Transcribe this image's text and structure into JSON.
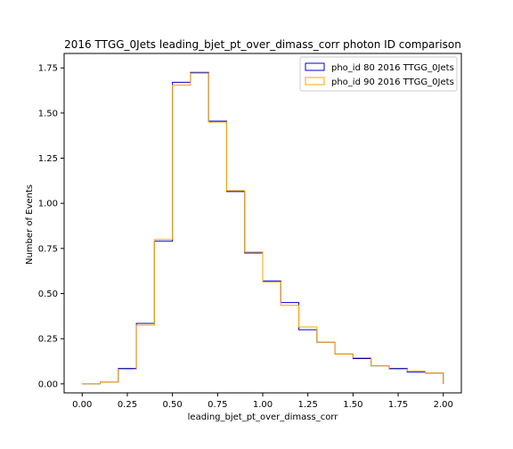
{
  "chart_data": {
    "type": "line",
    "style": "step-histogram",
    "title": "2016 TTGG_0Jets leading_bjet_pt_over_dimass_corr photon ID comparison",
    "xlabel": "leading_bjet_pt_over_dimass_corr",
    "ylabel": "Number of Events",
    "xlim": [
      -0.1,
      2.1
    ],
    "ylim": [
      -0.05,
      1.83
    ],
    "xticks": [
      0.0,
      0.25,
      0.5,
      0.75,
      1.0,
      1.25,
      1.5,
      1.75,
      2.0
    ],
    "xtick_labels": [
      "0.00",
      "0.25",
      "0.50",
      "0.75",
      "1.00",
      "1.25",
      "1.50",
      "1.75",
      "2.00"
    ],
    "yticks": [
      0.0,
      0.25,
      0.5,
      0.75,
      1.0,
      1.25,
      1.5,
      1.75
    ],
    "ytick_labels": [
      "0.00",
      "0.25",
      "0.50",
      "0.75",
      "1.00",
      "1.25",
      "1.50",
      "1.75"
    ],
    "grid": false,
    "legend_position": "top-right",
    "bin_edges": [
      0.0,
      0.1,
      0.2,
      0.3,
      0.4,
      0.5,
      0.6,
      0.7,
      0.8,
      0.9,
      1.0,
      1.1,
      1.2,
      1.3,
      1.4,
      1.5,
      1.6,
      1.7,
      1.8,
      1.9,
      2.0
    ],
    "series": [
      {
        "name": "pho_id 80 2016 TTGG_0Jets",
        "color": "#0000cc",
        "values": [
          0.0,
          0.01,
          0.085,
          0.335,
          0.79,
          1.67,
          1.725,
          1.455,
          1.065,
          0.725,
          0.57,
          0.45,
          0.3,
          0.23,
          0.165,
          0.14,
          0.1,
          0.085,
          0.065,
          0.06
        ]
      },
      {
        "name": "pho_id 90 2016 TTGG_0Jets",
        "color": "#ffa500",
        "values": [
          0.0,
          0.01,
          0.08,
          0.325,
          0.8,
          1.655,
          1.72,
          1.45,
          1.07,
          0.73,
          0.565,
          0.435,
          0.315,
          0.23,
          0.165,
          0.145,
          0.1,
          0.08,
          0.07,
          0.06
        ]
      }
    ]
  }
}
